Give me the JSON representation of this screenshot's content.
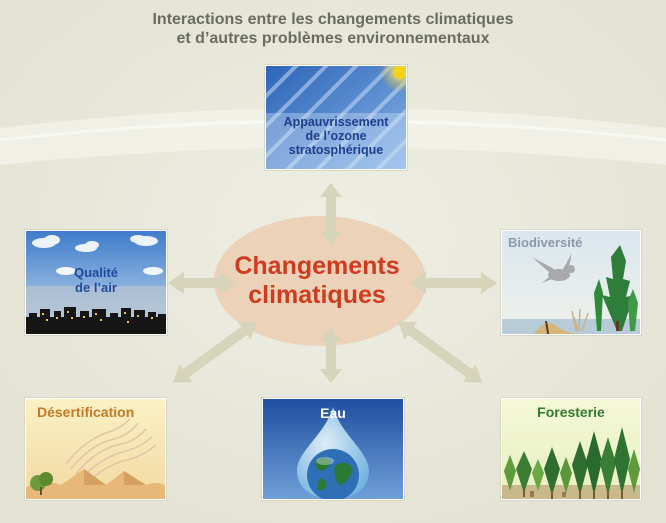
{
  "title": {
    "line1": "Interactions entre les changements climatiques",
    "line2": "et d’autres problèmes environnementaux"
  },
  "center": {
    "line1": "Changements",
    "line2": "climatiques"
  },
  "panels": {
    "ozone": {
      "line1": "Appauvrissement",
      "line2": "de l’ozone",
      "line3": "stratosphérique"
    },
    "air": {
      "line1": "Qualité",
      "line2": "de l’air"
    },
    "biodiversity": {
      "label": "Biodiversité"
    },
    "desertification": {
      "label": "Désertification"
    },
    "water": {
      "label": "Eau"
    },
    "forestry": {
      "label": "Foresterie"
    }
  },
  "colors": {
    "center_text": "#cf3b1f",
    "title_text": "#6a6c62",
    "arrows": "#d7d4bc",
    "center_ellipse": "#ecd2b9"
  }
}
